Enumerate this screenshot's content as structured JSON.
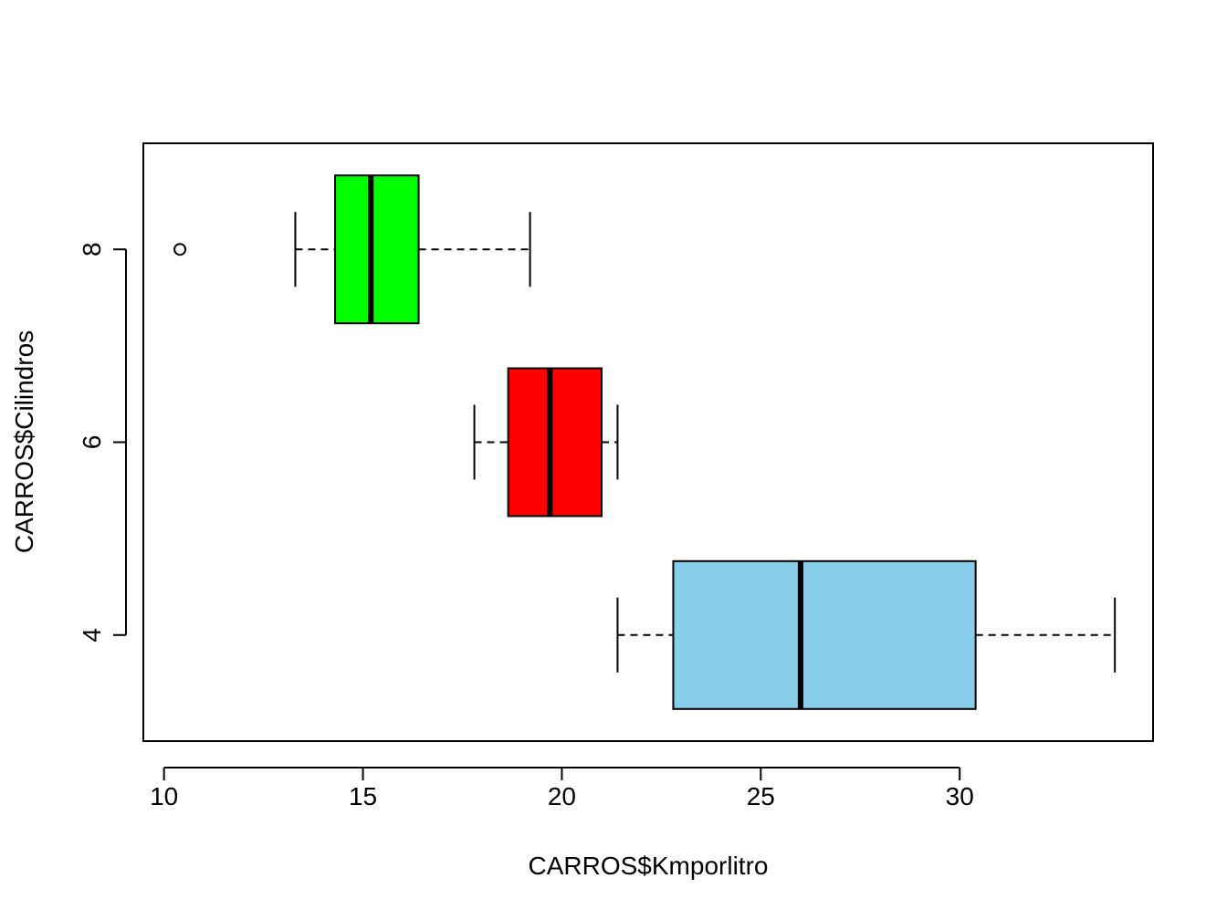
{
  "chart_data": {
    "type": "boxplot",
    "orientation": "horizontal",
    "title": "",
    "xlabel": "CARROS$Kmporlitro",
    "ylabel": "CARROS$Cilindros",
    "xlim": [
      9.48,
      34.86
    ],
    "x_ticks": [
      10,
      15,
      20,
      25,
      30
    ],
    "x_tick_labels": [
      "10",
      "15",
      "20",
      "25",
      "30"
    ],
    "y_ticks": [
      4,
      6,
      8
    ],
    "y_tick_labels": [
      "4",
      "6",
      "8"
    ],
    "grid": false,
    "legend": "none",
    "groups": [
      {
        "category": "4",
        "color": "#87CEEB",
        "whisker_low": 21.4,
        "q1": 22.8,
        "median": 26.0,
        "q3": 30.4,
        "whisker_high": 33.9,
        "outliers": []
      },
      {
        "category": "6",
        "color": "#FF0000",
        "whisker_low": 17.8,
        "q1": 18.65,
        "median": 19.7,
        "q3": 21.0,
        "whisker_high": 21.4,
        "outliers": []
      },
      {
        "category": "8",
        "color": "#00FF00",
        "whisker_low": 13.3,
        "q1": 14.3,
        "median": 15.2,
        "q3": 16.4,
        "whisker_high": 19.2,
        "outliers": [
          10.4
        ]
      }
    ]
  }
}
